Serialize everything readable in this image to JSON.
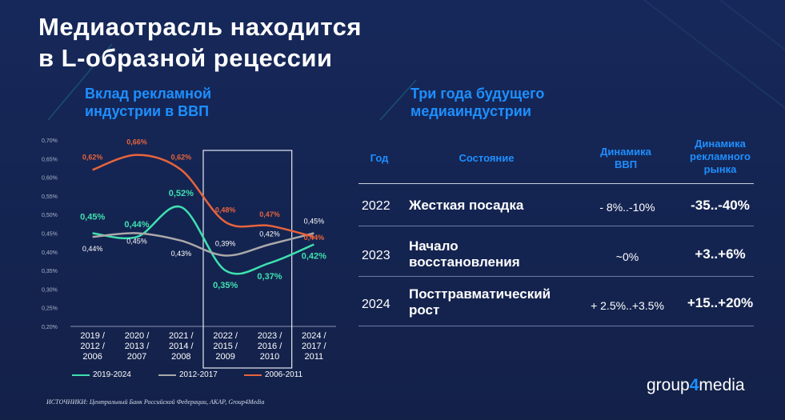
{
  "title": {
    "line1": "Медиаотрасль находится",
    "line2": "в L-образной рецессии"
  },
  "left_subtitle": {
    "line1": "Вклад рекламной",
    "line2": "индустрии в ВВП"
  },
  "right_subtitle": {
    "line1": "Три года будущего",
    "line2": "медиаиндустрии"
  },
  "chart_data": {
    "type": "line",
    "x_tick_labels": [
      [
        "2019 /",
        "2012 /",
        "2006"
      ],
      [
        "2020 /",
        "2013 /",
        "2007"
      ],
      [
        "2021 /",
        "2014 /",
        "2008"
      ],
      [
        "2022 /",
        "2015 /",
        "2009"
      ],
      [
        "2023 /",
        "2016 /",
        "2010"
      ],
      [
        "2024 /",
        "2017 /",
        "2011"
      ]
    ],
    "y_ticks": [
      "0,70%",
      "0,65%",
      "0,60%",
      "0,55%",
      "0,50%",
      "0,45%",
      "0,40%",
      "0,35%",
      "0,30%",
      "0,25%",
      "0,20%"
    ],
    "ylim": [
      0.2,
      0.7
    ],
    "highlight_range": [
      "2022",
      "2023"
    ],
    "series": [
      {
        "name": "2019-2024",
        "color": "#3fe0b0",
        "values": [
          0.45,
          0.44,
          0.52,
          0.35,
          0.37,
          0.42
        ],
        "labels": [
          "0,45%",
          "0,44%",
          "0,52%",
          "0,35%",
          "0,37%",
          "0,42%"
        ]
      },
      {
        "name": "2012-2017",
        "color": "#a9a9a9",
        "values": [
          0.44,
          0.45,
          0.43,
          0.39,
          0.42,
          0.45
        ],
        "labels": [
          "0,44%",
          "0,45%",
          "0,43%",
          "0,39%",
          "0,42%",
          "0,45%"
        ]
      },
      {
        "name": "2006-2011",
        "color": "#e8643c",
        "values": [
          0.62,
          0.66,
          0.62,
          0.48,
          0.47,
          0.44
        ],
        "labels": [
          "0,62%",
          "0,66%",
          "0,62%",
          "0,48%",
          "0,47%",
          "0,44%"
        ]
      }
    ]
  },
  "table": {
    "headers": {
      "year": "Год",
      "state": "Состояние",
      "gdp_line1": "Динамика",
      "gdp_line2": "ВВП",
      "ad_line1": "Динамика",
      "ad_line2": "рекламного",
      "ad_line3": "рынка"
    },
    "rows": [
      {
        "year": "2022",
        "state_line1": "Жесткая посадка",
        "state_line2": "",
        "gdp": "- 8%..-10%",
        "ad": "-35..-40%"
      },
      {
        "year": "2023",
        "state_line1": "Начало",
        "state_line2": "восстановления",
        "gdp": "~0%",
        "ad": "+3..+6%"
      },
      {
        "year": "2024",
        "state_line1": "Посттравматический",
        "state_line2": "рост",
        "gdp": "+ 2.5%..+3.5%",
        "ad": "+15..+20%"
      }
    ]
  },
  "source": "ИСТОЧНИКИ:  Центральный Банк Российской Федерации, АКАР, Group4Media",
  "logo": {
    "pre": "group",
    "accent": "4",
    "post": "media"
  }
}
